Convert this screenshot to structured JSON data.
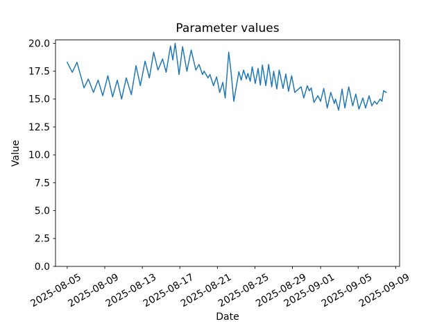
{
  "window": {
    "background": "#ffffff"
  },
  "chart_data": {
    "type": "line",
    "title": "Parameter values",
    "xlabel": "Date",
    "ylabel": "Value",
    "grid": false,
    "legend": "none",
    "axes_color": "#000000",
    "x_tick_labels": [
      "2025-08-05",
      "2025-08-09",
      "2025-08-13",
      "2025-08-17",
      "2025-08-21",
      "2025-08-25",
      "2025-08-29",
      "2025-09-01",
      "2025-09-05",
      "2025-09-09"
    ],
    "y_tick_labels": [
      "0.0",
      "2.5",
      "5.0",
      "7.5",
      "10.0",
      "12.5",
      "15.0",
      "17.5",
      "20.0"
    ],
    "xlim": [
      "2025-08-03T18:00",
      "2025-09-09T10:00"
    ],
    "ylim": [
      0,
      20.3
    ],
    "series": [
      {
        "name": "parameter-values",
        "color": "#1f77b4",
        "line_width": 1.5,
        "x": [
          "2025-08-05T00:00",
          "2025-08-05T13:00",
          "2025-08-06T01:00",
          "2025-08-06T19:00",
          "2025-08-07T06:00",
          "2025-08-07T19:00",
          "2025-08-08T07:00",
          "2025-08-08T19:00",
          "2025-08-09T08:00",
          "2025-08-09T20:00",
          "2025-08-10T08:00",
          "2025-08-10T19:00",
          "2025-08-11T07:00",
          "2025-08-11T20:00",
          "2025-08-12T08:00",
          "2025-08-12T19:00",
          "2025-08-13T07:00",
          "2025-08-13T18:00",
          "2025-08-14T05:00",
          "2025-08-14T16:00",
          "2025-08-15T04:00",
          "2025-08-15T13:00",
          "2025-08-16T00:00",
          "2025-08-16T06:00",
          "2025-08-16T12:00",
          "2025-08-16T22:00",
          "2025-08-17T07:00",
          "2025-08-17T18:00",
          "2025-08-18T05:00",
          "2025-08-18T17:00",
          "2025-08-19T01:00",
          "2025-08-19T10:00",
          "2025-08-19T14:00",
          "2025-08-20T00:00",
          "2025-08-20T05:00",
          "2025-08-20T14:00",
          "2025-08-20T22:00",
          "2025-08-21T06:00",
          "2025-08-21T14:00",
          "2025-08-21T20:00",
          "2025-08-22T05:00",
          "2025-08-22T11:00",
          "2025-08-22T18:00",
          "2025-08-23T07:00",
          "2025-08-23T13:00",
          "2025-08-23T19:00",
          "2025-08-24T02:00",
          "2025-08-24T06:00",
          "2025-08-24T12:00",
          "2025-08-24T17:00",
          "2025-08-25T01:00",
          "2025-08-25T08:00",
          "2025-08-25T14:00",
          "2025-08-25T19:00",
          "2025-08-26T04:00",
          "2025-08-26T11:00",
          "2025-08-26T19:00",
          "2025-08-27T00:00",
          "2025-08-27T08:00",
          "2025-08-27T14:00",
          "2025-08-28T00:00",
          "2025-08-28T07:00",
          "2025-08-28T14:00",
          "2025-08-28T22:00",
          "2025-08-29T06:00",
          "2025-08-29T22:00",
          "2025-08-30T05:00",
          "2025-08-30T14:00",
          "2025-08-30T19:00",
          "2025-08-31T00:00",
          "2025-08-31T07:00",
          "2025-08-31T17:00",
          "2025-09-01T00:00",
          "2025-09-01T08:00",
          "2025-09-01T17:00",
          "2025-09-02T02:00",
          "2025-09-02T11:00",
          "2025-09-02T14:00",
          "2025-09-02T22:00",
          "2025-09-03T07:00",
          "2025-09-03T14:00",
          "2025-09-04T00:00",
          "2025-09-04T10:00",
          "2025-09-04T18:00",
          "2025-09-05T02:00",
          "2025-09-05T12:00",
          "2025-09-05T19:00",
          "2025-09-06T04:00",
          "2025-09-06T11:00",
          "2025-09-06T18:00",
          "2025-09-07T00:00",
          "2025-09-07T08:00",
          "2025-09-07T13:00",
          "2025-09-07T17:00",
          "2025-09-08T00:00"
        ],
        "y": [
          18.3,
          17.4,
          18.3,
          16.0,
          16.8,
          15.6,
          16.7,
          15.3,
          17.1,
          15.2,
          16.7,
          15.0,
          16.9,
          15.4,
          18.0,
          16.2,
          18.4,
          16.9,
          19.2,
          17.6,
          18.6,
          17.4,
          19.75,
          18.5,
          20.0,
          17.2,
          19.7,
          17.5,
          19.4,
          17.6,
          18.1,
          17.2,
          17.5,
          16.9,
          17.2,
          16.2,
          17.0,
          15.6,
          16.5,
          15.1,
          19.2,
          17.4,
          14.8,
          17.45,
          16.7,
          17.6,
          16.8,
          17.3,
          16.6,
          17.9,
          16.4,
          17.75,
          16.25,
          18.05,
          16.2,
          18.1,
          16.1,
          17.5,
          15.9,
          17.6,
          15.95,
          17.25,
          15.7,
          17.1,
          15.6,
          16.1,
          15.1,
          16.2,
          15.75,
          16.0,
          14.7,
          15.3,
          14.8,
          15.95,
          14.2,
          15.6,
          14.6,
          15.0,
          14.0,
          15.9,
          14.2,
          16.1,
          14.4,
          15.45,
          14.1,
          15.1,
          14.2,
          15.3,
          14.4,
          14.8,
          14.55,
          15.0,
          14.8,
          15.75,
          15.6
        ]
      }
    ]
  }
}
